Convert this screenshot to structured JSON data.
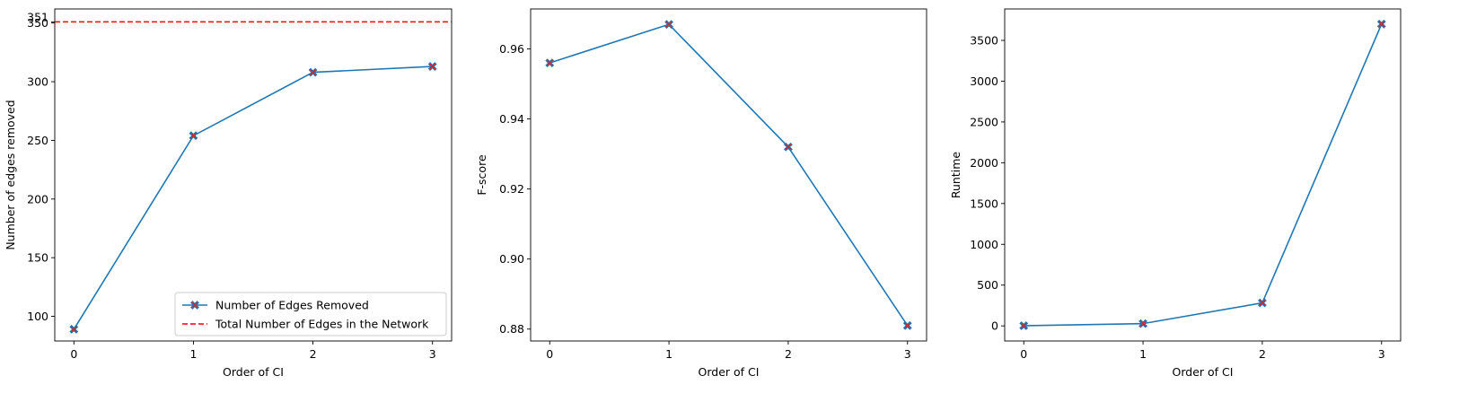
{
  "chart_data": [
    {
      "type": "line",
      "title": "",
      "xlabel": "Order of CI",
      "ylabel": "Number of edges removed",
      "x": [
        0,
        1,
        2,
        3
      ],
      "xticks": [
        "0",
        "1",
        "2",
        "3"
      ],
      "xlim": [
        -0.16,
        3.16
      ],
      "ylim": [
        79,
        362
      ],
      "yticks": [
        100,
        150,
        200,
        250,
        300,
        350
      ],
      "extra_ytick": 351,
      "grid": false,
      "series": [
        {
          "name": "Number of Edges Removed",
          "values": [
            89,
            254,
            308,
            313
          ],
          "color": "#1f77b4",
          "marker": "X",
          "marker_color": "#d62728"
        }
      ],
      "hlines": [
        {
          "name": "Total Number of Edges in the Network",
          "value": 351,
          "color": "#ff0000",
          "style": "dashed"
        }
      ],
      "legend_position": "lower right"
    },
    {
      "type": "line",
      "title": "",
      "xlabel": "Order of CI",
      "ylabel": "F-score",
      "x": [
        0,
        1,
        2,
        3
      ],
      "xticks": [
        "0",
        "1",
        "2",
        "3"
      ],
      "xlim": [
        -0.16,
        3.16
      ],
      "ylim": [
        0.8766,
        0.9714
      ],
      "yticks": [
        0.88,
        0.9,
        0.92,
        0.94,
        0.96
      ],
      "ytick_labels": [
        "0.88",
        "0.90",
        "0.92",
        "0.94",
        "0.96"
      ],
      "grid": false,
      "series": [
        {
          "values": [
            0.956,
            0.967,
            0.932,
            0.881
          ],
          "color": "#1f77b4",
          "marker": "X",
          "marker_color": "#d62728"
        }
      ]
    },
    {
      "type": "line",
      "title": "",
      "xlabel": "Order of CI",
      "ylabel": "Runtime",
      "x": [
        0,
        1,
        2,
        3
      ],
      "xticks": [
        "0",
        "1",
        "2",
        "3"
      ],
      "xlim": [
        -0.16,
        3.16
      ],
      "ylim": [
        -185,
        3885
      ],
      "yticks": [
        0,
        500,
        1000,
        1500,
        2000,
        2500,
        3000,
        3500
      ],
      "grid": false,
      "series": [
        {
          "values": [
            2,
            28,
            282,
            3700
          ],
          "color": "#1f77b4",
          "marker": "X",
          "marker_color": "#d62728"
        }
      ]
    }
  ]
}
